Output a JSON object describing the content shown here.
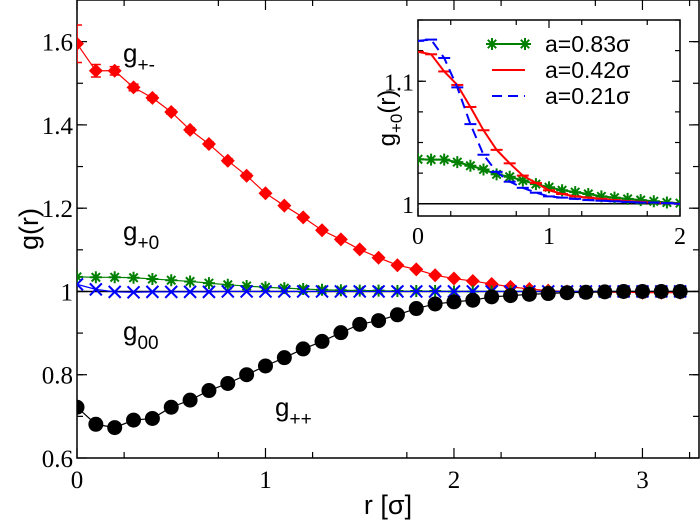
{
  "chart_data": [
    {
      "type": "line",
      "xlabel": "r [σ]",
      "ylabel": "g(r)",
      "xlim": [
        0,
        3.3
      ],
      "ylim": [
        0.6,
        1.7
      ],
      "xticks": [
        "0",
        "1",
        "2",
        "3"
      ],
      "yticks": [
        "0.6",
        "0.8",
        "1",
        "1.2",
        "1.4",
        "1.6"
      ],
      "grid": false,
      "reference_line": 1,
      "x": [
        0,
        0.1,
        0.2,
        0.3,
        0.4,
        0.5,
        0.6,
        0.7,
        0.8,
        0.9,
        1.0,
        1.1,
        1.2,
        1.3,
        1.4,
        1.5,
        1.6,
        1.7,
        1.8,
        1.9,
        2.0,
        2.1,
        2.2,
        2.3,
        2.4,
        2.5,
        2.6,
        2.7,
        2.8,
        2.9,
        3.0,
        3.1,
        3.2
      ],
      "series": [
        {
          "name": "g+-",
          "label_main": "g",
          "label_sub": "+-",
          "color": "#ff0000",
          "marker": "diamond",
          "values": [
            1.595,
            1.53,
            1.53,
            1.49,
            1.465,
            1.431,
            1.388,
            1.354,
            1.314,
            1.278,
            1.236,
            1.206,
            1.178,
            1.147,
            1.125,
            1.101,
            1.081,
            1.063,
            1.053,
            1.039,
            1.031,
            1.025,
            1.018,
            1.011,
            1.006,
            1.002,
            1.0,
            0.999,
            0.998,
            0.998,
            0.997,
            0.997,
            0.997
          ],
          "errors": [
            0.045,
            0.015,
            0.01,
            0.008,
            0.006,
            0.005,
            0.005,
            0.005,
            0.005,
            0.005,
            0.004,
            0.004,
            0.004,
            0.004,
            0.004,
            0.003,
            0.003,
            0.003,
            0.003,
            0.003,
            0.003,
            0.003,
            0.003,
            0.003,
            0.003,
            0.003,
            0.003,
            0.003,
            0.003,
            0.003,
            0.003,
            0.003,
            0.003
          ]
        },
        {
          "name": "g+0",
          "label_main": "g",
          "label_sub": "+0",
          "color": "#008000",
          "marker": "asterisk",
          "values": [
            1.035,
            1.034,
            1.034,
            1.033,
            1.03,
            1.027,
            1.024,
            1.02,
            1.016,
            1.013,
            1.01,
            1.008,
            1.006,
            1.004,
            1.003,
            1.002,
            1.002,
            1.001,
            1.001,
            1.001,
            1.0,
            1.0,
            1.0,
            1.0,
            1.0,
            1.0,
            1.0,
            1.0,
            1.0,
            1.0,
            1.0,
            1.0,
            1.0
          ]
        },
        {
          "name": "g00",
          "label_main": "g",
          "label_sub": "00",
          "color": "#0000ff",
          "marker": "cross",
          "values": [
            1.017,
            1.005,
            0.999,
            0.998,
            0.999,
            0.999,
            0.999,
            0.999,
            1.0,
            1.0,
            1.0,
            1.0,
            1.0,
            1.0,
            1.0,
            1.0,
            1.0,
            1.0,
            1.0,
            1.0,
            1.0,
            1.0,
            1.0,
            1.0,
            1.0,
            1.0,
            1.0,
            1.0,
            1.0,
            1.0,
            1.0,
            1.0,
            1.0
          ]
        },
        {
          "name": "g++",
          "label_main": "g",
          "label_sub": "++",
          "color": "#000000",
          "marker": "circle",
          "values": [
            0.722,
            0.681,
            0.673,
            0.691,
            0.695,
            0.722,
            0.739,
            0.762,
            0.779,
            0.8,
            0.821,
            0.841,
            0.862,
            0.88,
            0.901,
            0.921,
            0.93,
            0.944,
            0.959,
            0.97,
            0.975,
            0.979,
            0.987,
            0.99,
            0.993,
            0.995,
            0.997,
            0.998,
            0.999,
            1.0,
            1.0,
            1.0,
            1.0
          ],
          "errors": [
            0.006,
            0.012,
            0.006,
            0.005,
            0.005,
            0.004,
            0.004,
            0.004,
            0.004,
            0.004,
            0.004,
            0.004,
            0.004,
            0.004,
            0.004,
            0.004,
            0.004,
            0.004,
            0.004,
            0.004,
            0.004,
            0.004,
            0.004,
            0.004,
            0.004,
            0.004,
            0.004,
            0.004,
            0.004,
            0.004,
            0.004,
            0.004,
            0.004
          ]
        }
      ]
    },
    {
      "type": "line",
      "xlabel": "",
      "ylabel_main": "g",
      "ylabel_sub": "+0",
      "ylabel_tail": "(r)",
      "xlim": [
        0,
        2
      ],
      "ylim": [
        0.99,
        1.15
      ],
      "xticks": [
        "0",
        "1",
        "2"
      ],
      "yticks": [
        "1",
        "1.1"
      ],
      "grid": false,
      "reference_line": 1,
      "legend": "top-right",
      "x": [
        0,
        0.1,
        0.2,
        0.3,
        0.4,
        0.5,
        0.6,
        0.7,
        0.8,
        0.9,
        1.0,
        1.1,
        1.2,
        1.3,
        1.4,
        1.5,
        1.6,
        1.7,
        1.8,
        1.9,
        2.0
      ],
      "series": [
        {
          "name": "a=0.83σ",
          "color": "#008000",
          "marker": "asterisk",
          "dash": "",
          "values": [
            1.0363,
            1.036,
            1.036,
            1.034,
            1.031,
            1.028,
            1.024,
            1.022,
            1.019,
            1.016,
            1.0135,
            1.011,
            1.0095,
            1.008,
            1.006,
            1.005,
            1.004,
            1.003,
            1.002,
            1.001,
            1.0005
          ]
        },
        {
          "name": "a=0.42σ",
          "color": "#ff0000",
          "marker": "none",
          "dash": "",
          "values": [
            1.124,
            1.122,
            1.108,
            1.097,
            1.079,
            1.06,
            1.044,
            1.033,
            1.023,
            1.017,
            1.011,
            1.008,
            1.006,
            1.005,
            1.004,
            1.003,
            1.002,
            1.0015,
            1.001,
            1.0005,
            1.0
          ]
        },
        {
          "name": "a=0.21σ",
          "color": "#0000ff",
          "marker": "none",
          "dash": "10,6",
          "values": [
            1.133,
            1.134,
            1.119,
            1.095,
            1.065,
            1.04,
            1.026,
            1.018,
            1.013,
            1.009,
            1.006,
            1.005,
            1.004,
            1.003,
            1.0025,
            1.002,
            1.0015,
            1.001,
            1.001,
            1.0005,
            1.0
          ]
        }
      ]
    }
  ]
}
